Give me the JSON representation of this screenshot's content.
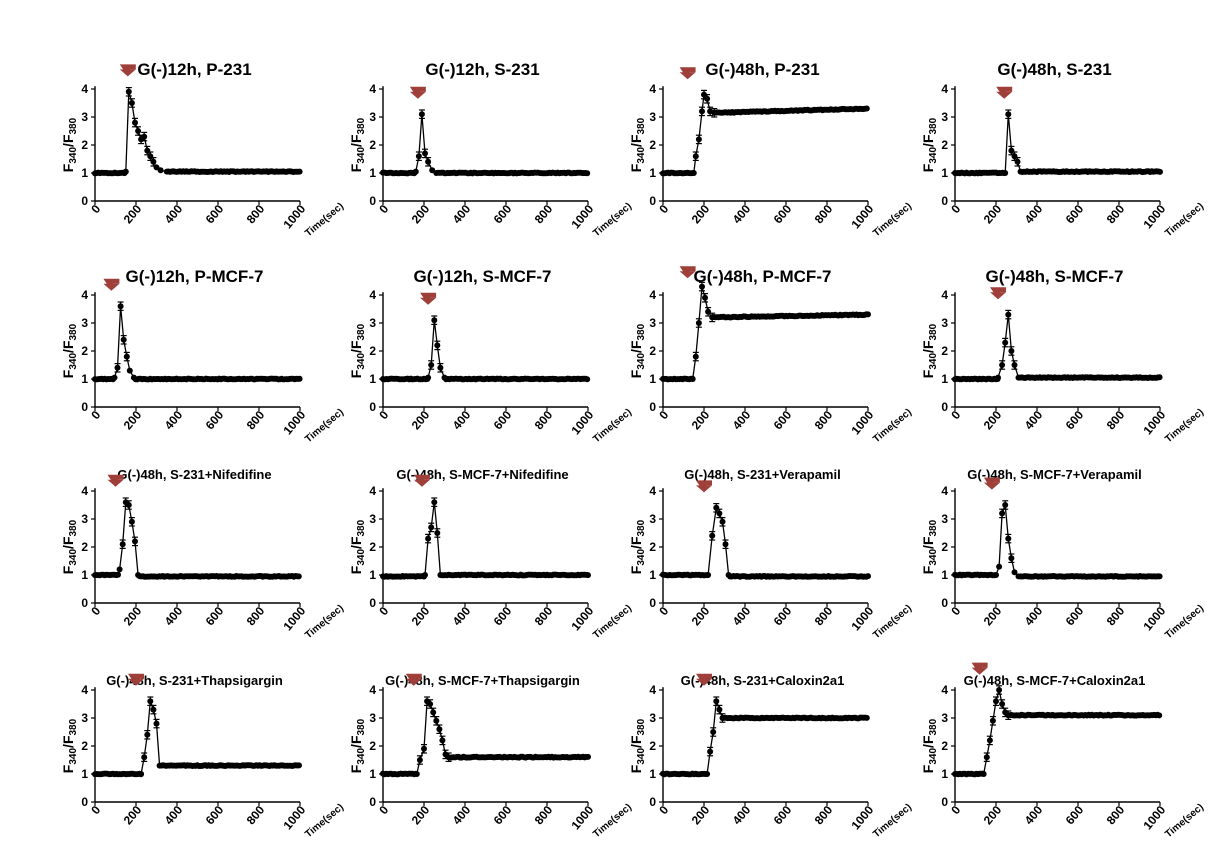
{
  "colors": {
    "marker": "#000000",
    "line": "#000000",
    "arrow": "#9e3f3a",
    "axis": "#000000"
  },
  "shared": {
    "x_ticks": [
      0,
      200,
      400,
      600,
      800,
      1000
    ],
    "y_ticks": [
      0,
      1,
      2,
      3,
      4
    ],
    "x_unit_label": "Time(sec)",
    "y_label_main": "F",
    "y_label_num": "340",
    "y_label_slash": "/F",
    "y_label_den": "380"
  },
  "chart_data": [
    {
      "type": "line",
      "title": "G(-)12h, P-231",
      "xlabel": "Time(sec)",
      "ylabel": "F340/F380",
      "xlim": [
        0,
        1000
      ],
      "ylim": [
        0,
        4
      ],
      "arrow_at": 160,
      "baseline": 1.0,
      "plateau": 1.05,
      "peak_pts": [
        [
          150,
          1.05
        ],
        [
          165,
          3.9
        ],
        [
          180,
          3.5
        ],
        [
          195,
          2.8
        ],
        [
          210,
          2.5
        ],
        [
          225,
          2.2
        ],
        [
          240,
          2.3
        ],
        [
          255,
          1.8
        ],
        [
          270,
          1.6
        ],
        [
          285,
          1.4
        ],
        [
          300,
          1.2
        ],
        [
          320,
          1.1
        ],
        [
          350,
          1.05
        ]
      ],
      "series": [
        {
          "name": "G(-)12h, P-231"
        }
      ]
    },
    {
      "type": "line",
      "title": "G(-)12h, S-231",
      "xlabel": "Time(sec)",
      "ylabel": "F340/F380",
      "xlim": [
        0,
        1000
      ],
      "ylim": [
        0,
        4
      ],
      "arrow_at": 170,
      "baseline": 1.0,
      "plateau": 1.0,
      "peak_pts": [
        [
          160,
          1.05
        ],
        [
          175,
          1.6
        ],
        [
          190,
          3.1
        ],
        [
          205,
          1.7
        ],
        [
          220,
          1.4
        ],
        [
          240,
          1.1
        ],
        [
          260,
          1.0
        ]
      ],
      "series": [
        {
          "name": "G(-)12h, S-231"
        }
      ]
    },
    {
      "type": "line",
      "title": "G(-)48h, P-231",
      "xlabel": "Time(sec)",
      "ylabel": "F340/F380",
      "xlim": [
        0,
        1000
      ],
      "ylim": [
        0,
        4
      ],
      "arrow_at": 120,
      "baseline": 1.0,
      "plateau_start": 3.15,
      "plateau": 3.3,
      "peak_pts": [
        [
          150,
          1.0
        ],
        [
          160,
          1.6
        ],
        [
          175,
          2.2
        ],
        [
          190,
          3.2
        ],
        [
          200,
          3.8
        ],
        [
          215,
          3.65
        ],
        [
          230,
          3.2
        ],
        [
          250,
          3.15
        ]
      ],
      "series": [
        {
          "name": "G(-)48h, P-231"
        }
      ]
    },
    {
      "type": "line",
      "title": "G(-)48h, S-231",
      "xlabel": "Time(sec)",
      "ylabel": "F340/F380",
      "xlim": [
        0,
        1000
      ],
      "ylim": [
        0,
        4
      ],
      "arrow_at": 240,
      "baseline": 1.0,
      "plateau": 1.05,
      "peak_pts": [
        [
          245,
          1.0
        ],
        [
          260,
          3.1
        ],
        [
          275,
          1.8
        ],
        [
          290,
          1.6
        ],
        [
          305,
          1.4
        ],
        [
          320,
          1.05
        ]
      ],
      "series": [
        {
          "name": "G(-)48h, S-231"
        }
      ]
    },
    {
      "type": "line",
      "title": "G(-)12h, P-MCF-7",
      "xlabel": "Time(sec)",
      "ylabel": "F340/F380",
      "xlim": [
        0,
        1000
      ],
      "ylim": [
        0,
        4
      ],
      "arrow_at": 80,
      "baseline": 1.0,
      "plateau": 1.0,
      "peak_pts": [
        [
          95,
          1.05
        ],
        [
          110,
          1.4
        ],
        [
          125,
          3.6
        ],
        [
          140,
          2.4
        ],
        [
          155,
          1.8
        ],
        [
          170,
          1.3
        ],
        [
          190,
          1.05
        ]
      ],
      "series": [
        {
          "name": "G(-)12h, P-MCF-7"
        }
      ]
    },
    {
      "type": "line",
      "title": "G(-)12h, S-MCF-7",
      "xlabel": "Time(sec)",
      "ylabel": "F340/F380",
      "xlim": [
        0,
        1000
      ],
      "ylim": [
        0,
        4
      ],
      "arrow_at": 220,
      "baseline": 1.0,
      "plateau": 1.0,
      "peak_pts": [
        [
          220,
          1.05
        ],
        [
          235,
          1.5
        ],
        [
          250,
          3.1
        ],
        [
          265,
          2.2
        ],
        [
          280,
          1.4
        ],
        [
          300,
          1.05
        ]
      ],
      "series": [
        {
          "name": "G(-)12h, S-MCF-7"
        }
      ]
    },
    {
      "type": "line",
      "title": "G(-)48h, P-MCF-7",
      "xlabel": "Time(sec)",
      "ylabel": "F340/F380",
      "xlim": [
        0,
        1000
      ],
      "ylim": [
        0,
        4
      ],
      "arrow_at": 120,
      "baseline": 1.0,
      "plateau_start": 3.2,
      "plateau": 3.3,
      "peak_pts": [
        [
          145,
          1.0
        ],
        [
          160,
          1.8
        ],
        [
          175,
          3.0
        ],
        [
          190,
          4.3
        ],
        [
          205,
          3.9
        ],
        [
          220,
          3.4
        ],
        [
          240,
          3.2
        ]
      ],
      "series": [
        {
          "name": "G(-)48h, P-MCF-7"
        }
      ]
    },
    {
      "type": "line",
      "title": "G(-)48h, S-MCF-7",
      "xlabel": "Time(sec)",
      "ylabel": "F340/F380",
      "xlim": [
        0,
        1000
      ],
      "ylim": [
        0,
        4
      ],
      "arrow_at": 210,
      "baseline": 1.0,
      "plateau": 1.05,
      "peak_pts": [
        [
          210,
          1.05
        ],
        [
          230,
          1.5
        ],
        [
          245,
          2.3
        ],
        [
          260,
          3.3
        ],
        [
          275,
          2.0
        ],
        [
          290,
          1.5
        ],
        [
          310,
          1.05
        ]
      ],
      "series": [
        {
          "name": "G(-)48h, S-MCF-7"
        }
      ]
    },
    {
      "type": "line",
      "title": "G(-)48h, S-231+Nifedifine",
      "xlabel": "Time(sec)",
      "ylabel": "F340/F380",
      "xlim": [
        0,
        1000
      ],
      "ylim": [
        0,
        4
      ],
      "arrow_at": 100,
      "baseline": 1.0,
      "plateau": 0.95,
      "peak_pts": [
        [
          120,
          1.2
        ],
        [
          135,
          2.1
        ],
        [
          150,
          3.6
        ],
        [
          165,
          3.5
        ],
        [
          180,
          2.9
        ],
        [
          195,
          2.2
        ],
        [
          210,
          1.0
        ]
      ],
      "series": [
        {
          "name": "G(-)48h, S-231+Nifedifine"
        }
      ]
    },
    {
      "type": "line",
      "title": "G(-)48h, S-MCF-7+Nifedifine",
      "xlabel": "Time(sec)",
      "ylabel": "F340/F380",
      "xlim": [
        0,
        1000
      ],
      "ylim": [
        0,
        4
      ],
      "arrow_at": 190,
      "baseline": 0.95,
      "plateau": 1.0,
      "peak_pts": [
        [
          205,
          1.0
        ],
        [
          220,
          2.3
        ],
        [
          235,
          2.7
        ],
        [
          250,
          3.6
        ],
        [
          265,
          2.5
        ],
        [
          280,
          1.0
        ]
      ],
      "series": [
        {
          "name": "G(-)48h, S-MCF-7+Nifedifine"
        }
      ]
    },
    {
      "type": "line",
      "title": "G(-)48h, S-231+Verapamil",
      "xlabel": "Time(sec)",
      "ylabel": "F340/F380",
      "xlim": [
        0,
        1000
      ],
      "ylim": [
        0,
        4
      ],
      "arrow_at": 200,
      "baseline": 1.0,
      "plateau": 0.95,
      "peak_pts": [
        [
          220,
          1.0
        ],
        [
          240,
          2.4
        ],
        [
          260,
          3.4
        ],
        [
          275,
          3.2
        ],
        [
          290,
          2.9
        ],
        [
          305,
          2.1
        ],
        [
          320,
          1.0
        ]
      ],
      "series": [
        {
          "name": "G(-)48h, S-231+Verapamil"
        }
      ]
    },
    {
      "type": "line",
      "title": "G(-)48h, S-MCF-7+Verapamil",
      "xlabel": "Time(sec)",
      "ylabel": "F340/F380",
      "xlim": [
        0,
        1000
      ],
      "ylim": [
        0,
        4
      ],
      "arrow_at": 180,
      "baseline": 1.0,
      "plateau": 0.95,
      "peak_pts": [
        [
          200,
          1.0
        ],
        [
          215,
          1.3
        ],
        [
          230,
          3.2
        ],
        [
          245,
          3.5
        ],
        [
          260,
          2.3
        ],
        [
          275,
          1.6
        ],
        [
          290,
          1.1
        ],
        [
          310,
          0.95
        ]
      ],
      "series": [
        {
          "name": "G(-)48h, S-MCF-7+Verapamil"
        }
      ]
    },
    {
      "type": "line",
      "title": "G(-)48h, S-231+Thapsigargin",
      "xlabel": "Time(sec)",
      "ylabel": "F340/F380",
      "xlim": [
        0,
        1000
      ],
      "ylim": [
        0,
        4
      ],
      "arrow_at": 200,
      "baseline": 1.0,
      "plateau": 1.3,
      "peak_pts": [
        [
          225,
          1.0
        ],
        [
          240,
          1.6
        ],
        [
          255,
          2.4
        ],
        [
          270,
          3.6
        ],
        [
          285,
          3.3
        ],
        [
          300,
          2.8
        ],
        [
          315,
          1.3
        ]
      ],
      "series": [
        {
          "name": "G(-)48h, S-231+Thapsigargin"
        }
      ]
    },
    {
      "type": "line",
      "title": "G(-)48h, S-MCF-7+Thapsigargin",
      "xlabel": "Time(sec)",
      "ylabel": "F340/F380",
      "xlim": [
        0,
        1000
      ],
      "ylim": [
        0,
        4
      ],
      "arrow_at": 150,
      "baseline": 1.0,
      "plateau": 1.6,
      "peak_pts": [
        [
          165,
          1.0
        ],
        [
          180,
          1.5
        ],
        [
          200,
          1.9
        ],
        [
          215,
          3.6
        ],
        [
          230,
          3.5
        ],
        [
          245,
          3.2
        ],
        [
          260,
          2.9
        ],
        [
          275,
          2.6
        ],
        [
          290,
          2.2
        ],
        [
          305,
          1.7
        ],
        [
          320,
          1.6
        ]
      ],
      "series": [
        {
          "name": "G(-)48h, S-MCF-7+Thapsigargin"
        }
      ]
    },
    {
      "type": "line",
      "title": "G(-)48h, S-231+Caloxin2a1",
      "xlabel": "Time(sec)",
      "ylabel": "F340/F380",
      "xlim": [
        0,
        1000
      ],
      "ylim": [
        0,
        4
      ],
      "arrow_at": 200,
      "baseline": 1.0,
      "plateau": 3.0,
      "peak_pts": [
        [
          215,
          1.0
        ],
        [
          230,
          1.8
        ],
        [
          245,
          2.5
        ],
        [
          260,
          3.6
        ],
        [
          275,
          3.3
        ],
        [
          290,
          3.0
        ]
      ],
      "series": [
        {
          "name": "G(-)48h, S-231+Caloxin2a1"
        }
      ]
    },
    {
      "type": "line",
      "title": "G(-)48h, S-MCF-7+Caloxin2a1",
      "xlabel": "Time(sec)",
      "ylabel": "F340/F380",
      "xlim": [
        0,
        1000
      ],
      "ylim": [
        0,
        4
      ],
      "arrow_at": 120,
      "baseline": 1.0,
      "plateau": 3.1,
      "peak_pts": [
        [
          140,
          1.0
        ],
        [
          155,
          1.6
        ],
        [
          170,
          2.2
        ],
        [
          185,
          2.9
        ],
        [
          200,
          3.6
        ],
        [
          215,
          4.0
        ],
        [
          230,
          3.5
        ],
        [
          245,
          3.2
        ],
        [
          260,
          3.1
        ]
      ],
      "series": [
        {
          "name": "G(-)48h, S-MCF-7+Caloxin2a1"
        }
      ]
    }
  ]
}
